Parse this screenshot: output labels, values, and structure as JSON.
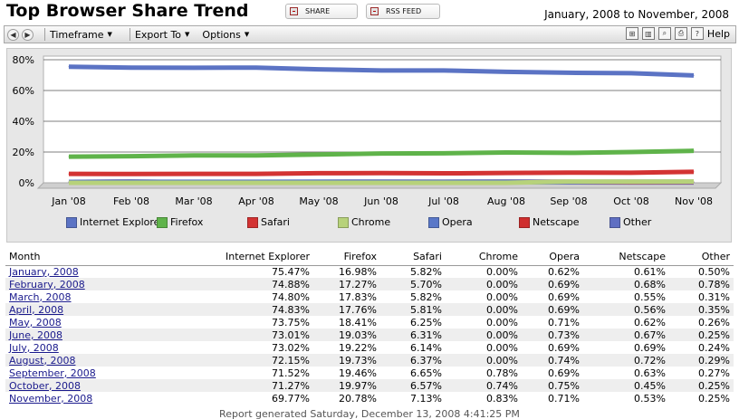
{
  "header": {
    "title": "Top Browser Share Trend",
    "share_label": "SHARE",
    "rss_label": "RSS FEED",
    "date_range": "January, 2008 to November, 2008"
  },
  "toolbar": {
    "menus": [
      {
        "label": "Timeframe"
      },
      {
        "label": "Export To"
      },
      {
        "label": "Options"
      }
    ],
    "help_label": "Help",
    "icons": [
      "grid-icon",
      "columns-icon",
      "zoom-icon",
      "print-icon",
      "help-doc-icon"
    ]
  },
  "colors": {
    "Internet Explorer": "#5b73c4",
    "Firefox": "#5fb34a",
    "Safari": "#d33333",
    "Chrome": "#b7d27a",
    "Opera": "#5a78c8",
    "Netscape": "#cf2f2f",
    "Other": "#5f6fc2"
  },
  "chart_data": {
    "type": "line",
    "categories": [
      "Jan '08",
      "Feb '08",
      "Mar '08",
      "Apr '08",
      "May '08",
      "Jun '08",
      "Jul '08",
      "Aug '08",
      "Sep '08",
      "Oct '08",
      "Nov '08"
    ],
    "ylim": [
      0,
      80
    ],
    "yticks": [
      "0%",
      "20%",
      "40%",
      "60%",
      "80%"
    ],
    "grid": true,
    "legend_position": "bottom",
    "series": [
      {
        "name": "Internet Explorer",
        "values": [
          75.47,
          74.88,
          74.8,
          74.83,
          73.75,
          73.01,
          73.02,
          72.15,
          71.52,
          71.27,
          69.77
        ]
      },
      {
        "name": "Firefox",
        "values": [
          16.98,
          17.27,
          17.83,
          17.76,
          18.41,
          19.03,
          19.22,
          19.73,
          19.46,
          19.97,
          20.78
        ]
      },
      {
        "name": "Safari",
        "values": [
          5.82,
          5.7,
          5.82,
          5.81,
          6.25,
          6.31,
          6.14,
          6.37,
          6.65,
          6.57,
          7.13
        ]
      },
      {
        "name": "Chrome",
        "values": [
          0.0,
          0.0,
          0.0,
          0.0,
          0.0,
          0.0,
          0.0,
          0.0,
          0.78,
          0.74,
          0.83
        ]
      },
      {
        "name": "Opera",
        "values": [
          0.62,
          0.69,
          0.69,
          0.69,
          0.71,
          0.73,
          0.69,
          0.74,
          0.69,
          0.75,
          0.71
        ]
      },
      {
        "name": "Netscape",
        "values": [
          0.61,
          0.68,
          0.55,
          0.56,
          0.62,
          0.67,
          0.69,
          0.72,
          0.63,
          0.45,
          0.53
        ]
      },
      {
        "name": "Other",
        "values": [
          0.5,
          0.78,
          0.31,
          0.35,
          0.26,
          0.25,
          0.24,
          0.29,
          0.27,
          0.25,
          0.25
        ]
      }
    ]
  },
  "table": {
    "headers": [
      "Month",
      "Internet Explorer",
      "Firefox",
      "Safari",
      "Chrome",
      "Opera",
      "Netscape",
      "Other"
    ],
    "rows": [
      [
        "January, 2008",
        "75.47%",
        "16.98%",
        "5.82%",
        "0.00%",
        "0.62%",
        "0.61%",
        "0.50%"
      ],
      [
        "February, 2008",
        "74.88%",
        "17.27%",
        "5.70%",
        "0.00%",
        "0.69%",
        "0.68%",
        "0.78%"
      ],
      [
        "March, 2008",
        "74.80%",
        "17.83%",
        "5.82%",
        "0.00%",
        "0.69%",
        "0.55%",
        "0.31%"
      ],
      [
        "April, 2008",
        "74.83%",
        "17.76%",
        "5.81%",
        "0.00%",
        "0.69%",
        "0.56%",
        "0.35%"
      ],
      [
        "May, 2008",
        "73.75%",
        "18.41%",
        "6.25%",
        "0.00%",
        "0.71%",
        "0.62%",
        "0.26%"
      ],
      [
        "June, 2008",
        "73.01%",
        "19.03%",
        "6.31%",
        "0.00%",
        "0.73%",
        "0.67%",
        "0.25%"
      ],
      [
        "July, 2008",
        "73.02%",
        "19.22%",
        "6.14%",
        "0.00%",
        "0.69%",
        "0.69%",
        "0.24%"
      ],
      [
        "August, 2008",
        "72.15%",
        "19.73%",
        "6.37%",
        "0.00%",
        "0.74%",
        "0.72%",
        "0.29%"
      ],
      [
        "September, 2008",
        "71.52%",
        "19.46%",
        "6.65%",
        "0.78%",
        "0.69%",
        "0.63%",
        "0.27%"
      ],
      [
        "October, 2008",
        "71.27%",
        "19.97%",
        "6.57%",
        "0.74%",
        "0.75%",
        "0.45%",
        "0.25%"
      ],
      [
        "November, 2008",
        "69.77%",
        "20.78%",
        "7.13%",
        "0.83%",
        "0.71%",
        "0.53%",
        "0.25%"
      ]
    ]
  },
  "footer": "Report generated Saturday, December 13, 2008 4:41:25 PM"
}
